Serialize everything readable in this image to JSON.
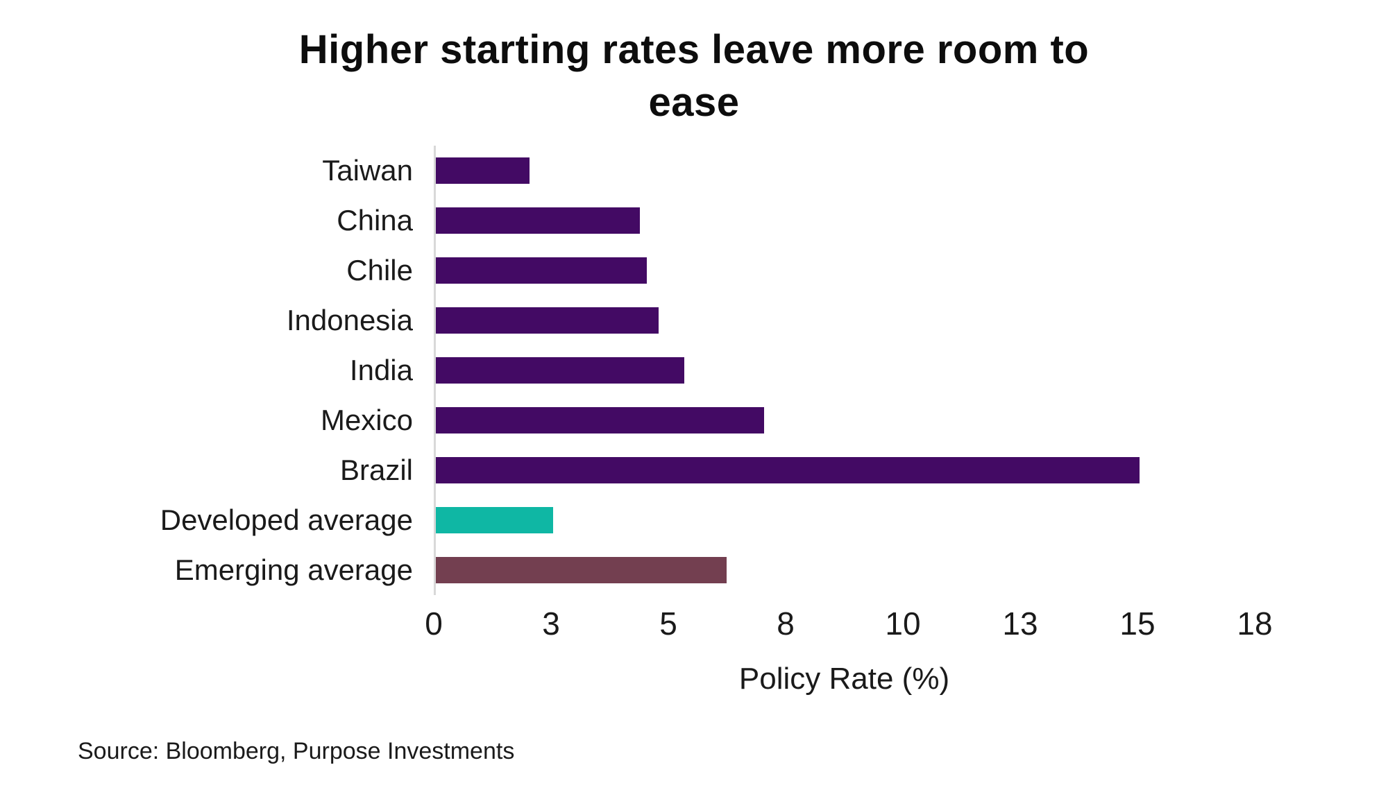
{
  "chart_data": {
    "type": "bar",
    "orientation": "horizontal",
    "title": "Higher starting rates leave more room to ease",
    "title_lines": [
      "Higher starting rates leave more room to",
      "ease"
    ],
    "xlabel": "Policy Rate (%)",
    "source": "Source: Bloomberg, Purpose Investments",
    "xlim": [
      0,
      17.5
    ],
    "grid": false,
    "legend": "none",
    "x_ticks": [
      {
        "label": "0",
        "value": 0
      },
      {
        "label": "3",
        "value": 2.5
      },
      {
        "label": "5",
        "value": 5
      },
      {
        "label": "8",
        "value": 7.5
      },
      {
        "label": "10",
        "value": 10
      },
      {
        "label": "13",
        "value": 12.5
      },
      {
        "label": "15",
        "value": 15
      },
      {
        "label": "18",
        "value": 17.5
      }
    ],
    "categories": [
      "Taiwan",
      "China",
      "Chile",
      "Indonesia",
      "India",
      "Mexico",
      "Brazil",
      "Developed average",
      "Emerging average"
    ],
    "values": [
      2.0,
      4.35,
      4.5,
      4.75,
      5.3,
      7.0,
      15.0,
      2.5,
      6.2
    ],
    "bar_color_keys": [
      "purple",
      "purple",
      "purple",
      "purple",
      "purple",
      "purple",
      "purple",
      "teal",
      "maroon"
    ],
    "colors": {
      "purple": "#430A64",
      "teal": "#0FB7A4",
      "maroon": "#733F50",
      "axis_line": "#D8D8D8",
      "text": "#1A1A1A"
    }
  }
}
